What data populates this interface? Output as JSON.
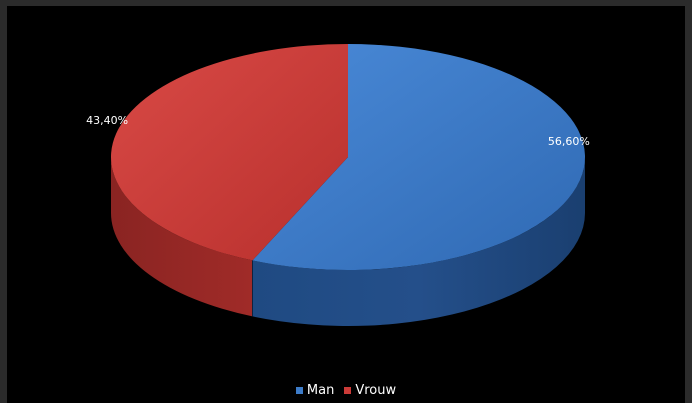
{
  "chart_data": {
    "type": "pie",
    "categories": [
      "Man",
      "Vrouw"
    ],
    "values": [
      56.6,
      43.4
    ],
    "data_labels": [
      "56,60%",
      "43,40%"
    ],
    "colors": [
      "#3d7cc9",
      "#cc3b38"
    ],
    "legend_position": "bottom",
    "style": "3d"
  },
  "legend": {
    "items": [
      {
        "label": "Man",
        "color": "#3d7cc9"
      },
      {
        "label": "Vrouw",
        "color": "#cc3b38"
      }
    ]
  }
}
